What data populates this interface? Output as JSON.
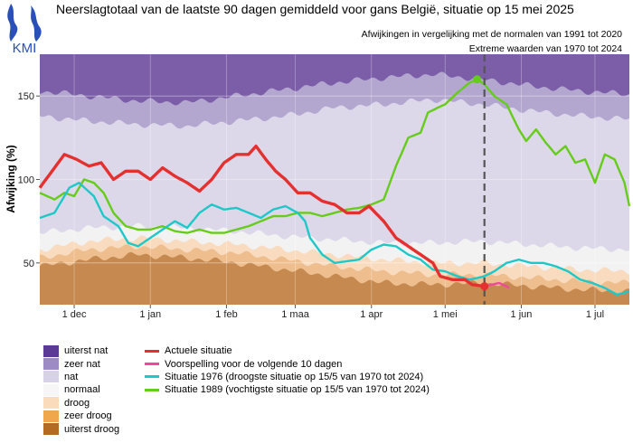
{
  "header": {
    "title": "Neerslagtotaal van de laatste 90 dagen gemiddeld voor gans België, situatie op 15 mei 2025",
    "subtitle_1": "Afwijkingen in vergelijking met de normalen van 1991 tot 2020",
    "subtitle_2": "Extreme waarden van 1970 tot 2024",
    "logo_text": "KMI"
  },
  "colors": {
    "uiterst_nat": "#7b5ea7",
    "zeer_nat": "#b3a6cf",
    "nat": "#dcd8ea",
    "normaal": "#f2f2f2",
    "droog": "#f9dcc0",
    "zeer_droog": "#efbe8e",
    "uiterst_droog": "#c68a50",
    "actueel": "#e53030",
    "voorspelling": "#ee4a9a",
    "s1976": "#1ec8c8",
    "s1989": "#66cc1a",
    "current_date_line": "#555555"
  },
  "chart_data": {
    "type": "line",
    "ylabel": "Afwijking (%)",
    "xlabel": "",
    "x_ticks": [
      "1 dec",
      "1 jan",
      "1 feb",
      "1 maa",
      "1 apr",
      "1 mei",
      "1 jun",
      "1 jul"
    ],
    "x_tick_days": [
      14,
      45,
      76,
      104,
      135,
      165,
      196,
      226
    ],
    "y_ticks": [
      50,
      100,
      150
    ],
    "xlim": [
      0,
      240
    ],
    "ylim": [
      25,
      175
    ],
    "current_day": 181,
    "bands": [
      {
        "name": "uiterst droog",
        "lower": [
          [
            0,
            48
          ],
          [
            20,
            52
          ],
          [
            40,
            55
          ],
          [
            60,
            53
          ],
          [
            80,
            50
          ],
          [
            100,
            46
          ],
          [
            120,
            42
          ],
          [
            140,
            38
          ],
          [
            160,
            37
          ],
          [
            180,
            38
          ],
          [
            200,
            36
          ],
          [
            220,
            34
          ],
          [
            240,
            33
          ]
        ]
      },
      {
        "name": "zeer droog",
        "lower": [
          [
            0,
            53
          ],
          [
            20,
            58
          ],
          [
            40,
            60
          ],
          [
            60,
            58
          ],
          [
            80,
            56
          ],
          [
            100,
            52
          ],
          [
            120,
            48
          ],
          [
            140,
            45
          ],
          [
            160,
            43
          ],
          [
            180,
            43
          ],
          [
            200,
            41
          ],
          [
            220,
            39
          ],
          [
            240,
            38
          ]
        ]
      },
      {
        "name": "droog",
        "lower": [
          [
            0,
            58
          ],
          [
            20,
            63
          ],
          [
            40,
            65
          ],
          [
            60,
            63
          ],
          [
            80,
            61
          ],
          [
            100,
            58
          ],
          [
            120,
            55
          ],
          [
            140,
            52
          ],
          [
            160,
            50
          ],
          [
            180,
            50
          ],
          [
            200,
            48
          ],
          [
            220,
            46
          ],
          [
            240,
            45
          ]
        ]
      },
      {
        "name": "normaal",
        "lower": [
          [
            0,
            68
          ],
          [
            20,
            71
          ],
          [
            40,
            72
          ],
          [
            60,
            71
          ],
          [
            80,
            69
          ],
          [
            100,
            66
          ],
          [
            120,
            64
          ],
          [
            140,
            62
          ],
          [
            160,
            62
          ],
          [
            180,
            63
          ],
          [
            200,
            61
          ],
          [
            220,
            59
          ],
          [
            240,
            58
          ]
        ]
      },
      {
        "name": "nat",
        "lower": [
          [
            0,
            138
          ],
          [
            20,
            135
          ],
          [
            40,
            133
          ],
          [
            60,
            132
          ],
          [
            80,
            135
          ],
          [
            100,
            138
          ],
          [
            120,
            143
          ],
          [
            140,
            145
          ],
          [
            160,
            148
          ],
          [
            180,
            145
          ],
          [
            200,
            141
          ],
          [
            220,
            138
          ],
          [
            240,
            136
          ]
        ]
      },
      {
        "name": "zeer nat",
        "lower": [
          [
            0,
            153
          ],
          [
            20,
            150
          ],
          [
            40,
            147
          ],
          [
            60,
            146
          ],
          [
            80,
            150
          ],
          [
            100,
            154
          ],
          [
            120,
            158
          ],
          [
            140,
            161
          ],
          [
            160,
            163
          ],
          [
            180,
            160
          ],
          [
            200,
            156
          ],
          [
            220,
            153
          ],
          [
            240,
            151
          ]
        ]
      },
      {
        "name": "uiterst nat",
        "lower": [
          [
            0,
            165
          ],
          [
            20,
            161
          ],
          [
            40,
            158
          ],
          [
            60,
            157
          ],
          [
            80,
            161
          ],
          [
            100,
            165
          ],
          [
            120,
            169
          ],
          [
            140,
            171
          ],
          [
            160,
            173
          ],
          [
            180,
            171
          ],
          [
            200,
            168
          ],
          [
            220,
            165
          ],
          [
            240,
            163
          ]
        ]
      }
    ],
    "series": [
      {
        "name": "Actuele situatie",
        "color_key": "actueel",
        "values": [
          [
            0,
            95
          ],
          [
            5,
            105
          ],
          [
            10,
            115
          ],
          [
            15,
            112
          ],
          [
            20,
            108
          ],
          [
            25,
            110
          ],
          [
            30,
            100
          ],
          [
            35,
            105
          ],
          [
            40,
            105
          ],
          [
            45,
            100
          ],
          [
            50,
            107
          ],
          [
            55,
            102
          ],
          [
            60,
            98
          ],
          [
            65,
            93
          ],
          [
            70,
            100
          ],
          [
            75,
            110
          ],
          [
            80,
            115
          ],
          [
            85,
            115
          ],
          [
            88,
            120
          ],
          [
            92,
            112
          ],
          [
            96,
            105
          ],
          [
            100,
            100
          ],
          [
            105,
            92
          ],
          [
            110,
            92
          ],
          [
            115,
            87
          ],
          [
            120,
            85
          ],
          [
            125,
            80
          ],
          [
            130,
            80
          ],
          [
            134,
            84
          ],
          [
            140,
            75
          ],
          [
            145,
            65
          ],
          [
            150,
            60
          ],
          [
            155,
            55
          ],
          [
            160,
            50
          ],
          [
            163,
            42
          ],
          [
            168,
            40
          ],
          [
            173,
            40
          ],
          [
            176,
            37
          ],
          [
            181,
            36
          ]
        ]
      },
      {
        "name": "Voorspelling voor de volgende 10 dagen",
        "color_key": "voorspelling",
        "values": [
          [
            181,
            36
          ],
          [
            184,
            37
          ],
          [
            187,
            38
          ],
          [
            190,
            36
          ],
          [
            191,
            35
          ]
        ]
      },
      {
        "name": "Situatie 1976 (droogste situatie op 15/5 van 1970 tot 2024)",
        "color_key": "s1976",
        "values": [
          [
            0,
            77
          ],
          [
            6,
            80
          ],
          [
            12,
            95
          ],
          [
            16,
            98
          ],
          [
            22,
            90
          ],
          [
            26,
            78
          ],
          [
            32,
            72
          ],
          [
            36,
            62
          ],
          [
            40,
            60
          ],
          [
            45,
            65
          ],
          [
            50,
            70
          ],
          [
            55,
            75
          ],
          [
            60,
            71
          ],
          [
            65,
            80
          ],
          [
            70,
            85
          ],
          [
            75,
            82
          ],
          [
            80,
            83
          ],
          [
            85,
            80
          ],
          [
            90,
            77
          ],
          [
            95,
            82
          ],
          [
            100,
            84
          ],
          [
            105,
            80
          ],
          [
            108,
            75
          ],
          [
            110,
            65
          ],
          [
            115,
            55
          ],
          [
            120,
            50
          ],
          [
            125,
            51
          ],
          [
            130,
            52
          ],
          [
            135,
            58
          ],
          [
            140,
            61
          ],
          [
            145,
            60
          ],
          [
            150,
            55
          ],
          [
            155,
            52
          ],
          [
            160,
            46
          ],
          [
            165,
            45
          ],
          [
            170,
            42
          ],
          [
            175,
            40
          ],
          [
            181,
            42
          ],
          [
            185,
            45
          ],
          [
            190,
            50
          ],
          [
            195,
            52
          ],
          [
            200,
            50
          ],
          [
            205,
            50
          ],
          [
            210,
            48
          ],
          [
            215,
            45
          ],
          [
            220,
            40
          ],
          [
            225,
            38
          ],
          [
            230,
            35
          ],
          [
            235,
            31
          ],
          [
            240,
            33
          ]
        ]
      },
      {
        "name": "Situatie 1989 (vochtigste situatie op 15/5 van 1970 tot 2024)",
        "color_key": "s1989",
        "values": [
          [
            0,
            92
          ],
          [
            6,
            88
          ],
          [
            10,
            92
          ],
          [
            14,
            90
          ],
          [
            18,
            100
          ],
          [
            22,
            98
          ],
          [
            26,
            92
          ],
          [
            30,
            80
          ],
          [
            35,
            72
          ],
          [
            40,
            70
          ],
          [
            45,
            70
          ],
          [
            50,
            72
          ],
          [
            55,
            69
          ],
          [
            60,
            68
          ],
          [
            65,
            70
          ],
          [
            70,
            68
          ],
          [
            75,
            68
          ],
          [
            80,
            70
          ],
          [
            85,
            72
          ],
          [
            90,
            75
          ],
          [
            95,
            78
          ],
          [
            100,
            78
          ],
          [
            105,
            80
          ],
          [
            110,
            80
          ],
          [
            115,
            78
          ],
          [
            120,
            80
          ],
          [
            125,
            82
          ],
          [
            130,
            83
          ],
          [
            135,
            85
          ],
          [
            140,
            88
          ],
          [
            145,
            108
          ],
          [
            150,
            125
          ],
          [
            155,
            128
          ],
          [
            158,
            140
          ],
          [
            162,
            143
          ],
          [
            165,
            145
          ],
          [
            170,
            152
          ],
          [
            175,
            158
          ],
          [
            178,
            160
          ],
          [
            181,
            157
          ],
          [
            185,
            150
          ],
          [
            190,
            145
          ],
          [
            195,
            130
          ],
          [
            198,
            123
          ],
          [
            202,
            130
          ],
          [
            206,
            122
          ],
          [
            210,
            115
          ],
          [
            214,
            120
          ],
          [
            218,
            110
          ],
          [
            222,
            112
          ],
          [
            226,
            98
          ],
          [
            230,
            115
          ],
          [
            234,
            112
          ],
          [
            238,
            98
          ],
          [
            240,
            84
          ]
        ]
      }
    ],
    "legend_classes": [
      "uiterst nat",
      "zeer nat",
      "nat",
      "normaal",
      "droog",
      "zeer droog",
      "uiterst droog"
    ],
    "legend_lines": [
      "Actuele situatie",
      "Voorspelling voor de volgende 10 dagen",
      "Situatie 1976 (droogste situatie op 15/5 van 1970 tot 2024)",
      "Situatie 1989 (vochtigste situatie op 15/5 van 1970 tot 2024)"
    ],
    "grid": true,
    "legend_position": "bottom"
  }
}
